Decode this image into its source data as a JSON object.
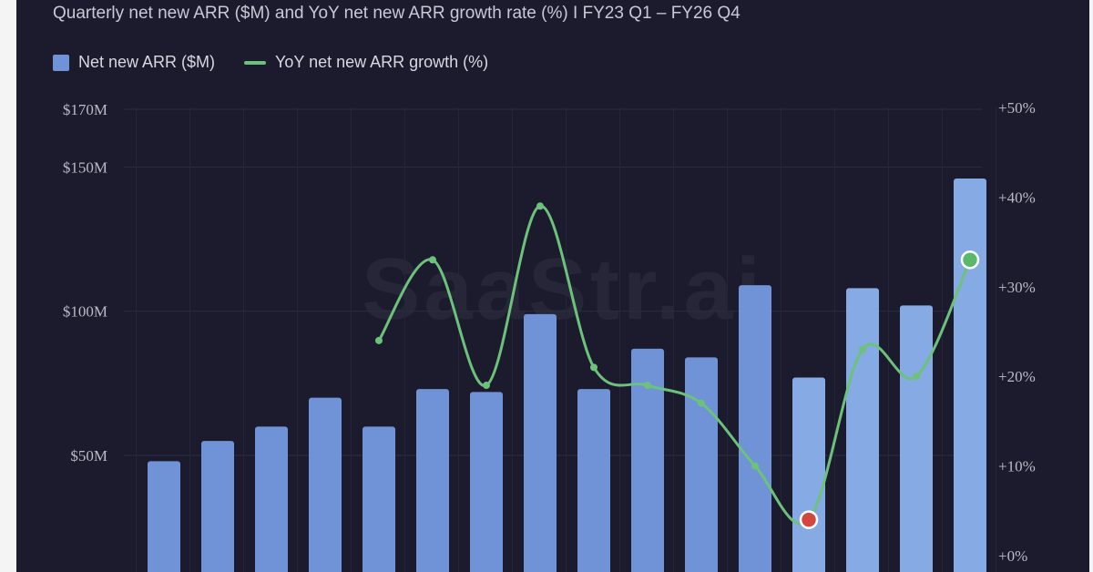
{
  "chart_data": {
    "type": "bar",
    "title": "Quarterly net new ARR ($M) and YoY net new ARR growth rate (%) I FY23 Q1 – FY26 Q4",
    "watermark": "SaaStr.ai",
    "legend": [
      {
        "name": "Net new ARR ($M)",
        "kind": "bar",
        "color": "#6f93d6"
      },
      {
        "name": "YoY net new ARR growth (%)",
        "kind": "line",
        "color": "#6cc27a"
      }
    ],
    "y_left": {
      "ticks": [
        50,
        100,
        150,
        170
      ],
      "labels": [
        "$50M",
        "$100M",
        "$150M",
        "$170M"
      ],
      "range": [
        37,
        170
      ]
    },
    "y_right": {
      "ticks": [
        0,
        10,
        20,
        30,
        40,
        50
      ],
      "labels": [
        "+0%",
        "+10%",
        "+20%",
        "+30%",
        "+40%",
        "+50%"
      ],
      "range": [
        0,
        50
      ]
    },
    "grid": true,
    "series": [
      {
        "name": "Net new ARR ($M)",
        "type": "bar",
        "values": [
          48,
          55,
          60,
          70,
          60,
          73,
          72,
          99,
          73,
          87,
          84,
          109,
          77,
          108,
          102,
          146
        ],
        "highlight_index": [
          12,
          13,
          14,
          15
        ]
      },
      {
        "name": "YoY net new ARR growth (%)",
        "type": "line",
        "values": [
          null,
          null,
          null,
          null,
          24,
          33,
          19,
          39,
          21,
          19,
          17,
          10,
          4,
          23,
          20,
          33
        ],
        "low_marker_index": 12,
        "high_marker_index": 15
      }
    ],
    "colors": {
      "bar": "#6f93d6",
      "bar_highlight": "#86aae3",
      "line": "#6cc27a",
      "low_marker": "#d2483f",
      "high_marker": "#5bb86a"
    }
  }
}
